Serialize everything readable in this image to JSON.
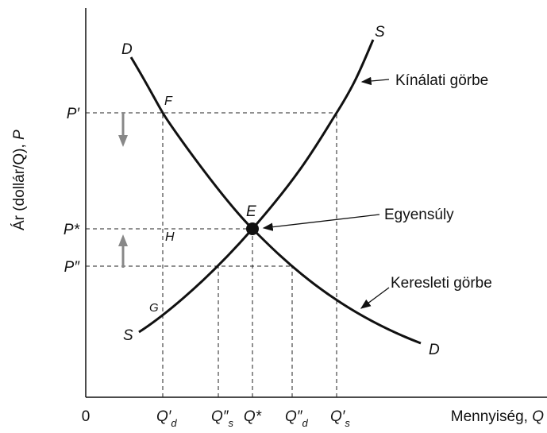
{
  "y_axis": {
    "label": "Ár (dollár/Q),",
    "symbol": "P",
    "ticks": [
      {
        "symbol": "P′"
      },
      {
        "symbol": "P*"
      },
      {
        "symbol": "P″"
      }
    ]
  },
  "x_axis": {
    "origin": "0",
    "label": "Mennyiség,",
    "symbol": "Q",
    "ticks": [
      {
        "symbol": "Q′",
        "sub": "d"
      },
      {
        "symbol": "Q″",
        "sub": "s"
      },
      {
        "symbol": "Q*"
      },
      {
        "symbol": "Q″",
        "sub": "d"
      },
      {
        "symbol": "Q′",
        "sub": "s"
      }
    ]
  },
  "curves": {
    "demand": {
      "start": "D",
      "end": "D",
      "annotation": "Keresleti görbe"
    },
    "supply": {
      "start": "S",
      "end": "S",
      "annotation": "Kínálati görbe"
    }
  },
  "points": {
    "F": "F",
    "E": "E",
    "H": "H",
    "G": "G"
  },
  "equilibrium": "Egyensúly"
}
